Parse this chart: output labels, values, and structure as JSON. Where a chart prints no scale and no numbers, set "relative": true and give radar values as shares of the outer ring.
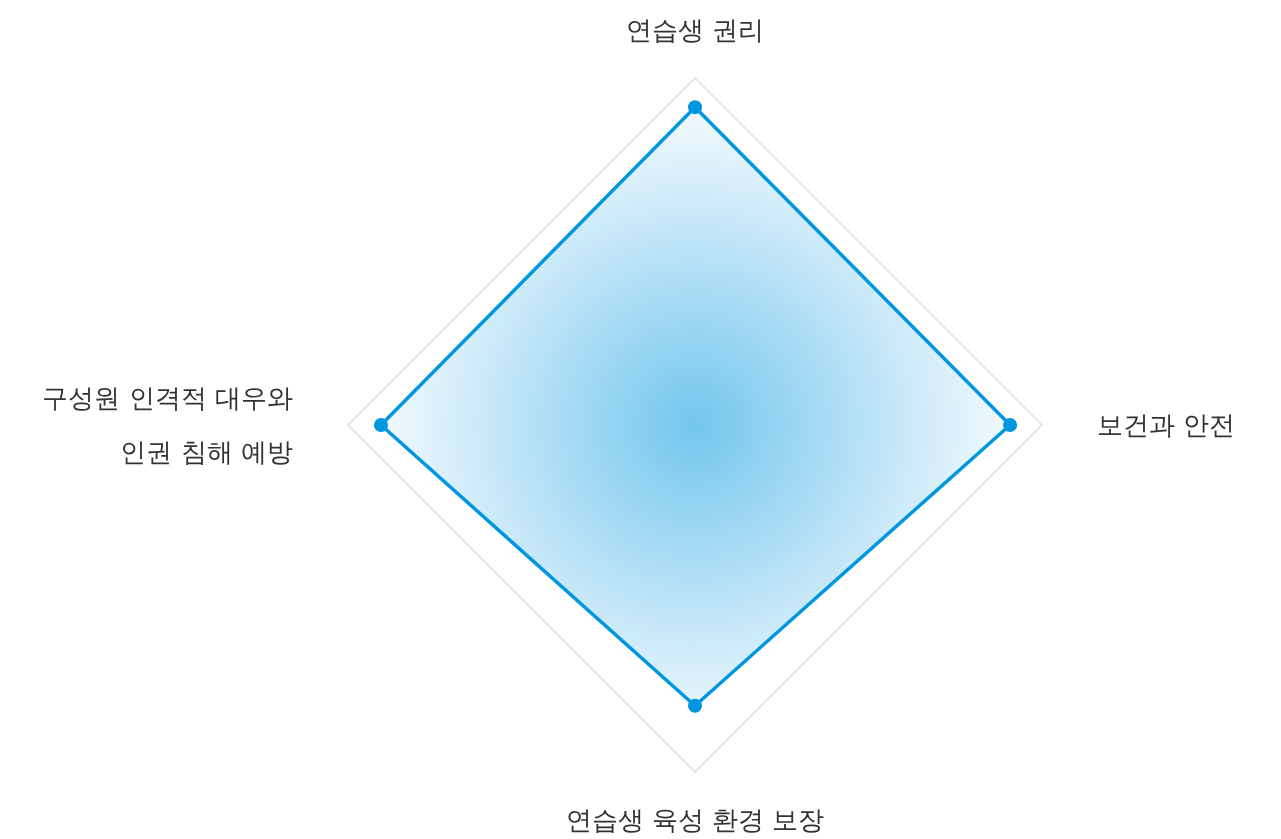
{
  "chart_data": {
    "type": "radar",
    "relative": true,
    "marker": "circle",
    "categories": [
      "연습생 권리",
      "보건과 안전",
      "연습생 육성 환경 보장",
      "구성원 인격적 대우와\n인권 침해 예방"
    ],
    "series": [
      {
        "color": "#0096e0",
        "values": [
          0.916,
          0.908,
          0.809,
          0.905
        ]
      }
    ]
  }
}
